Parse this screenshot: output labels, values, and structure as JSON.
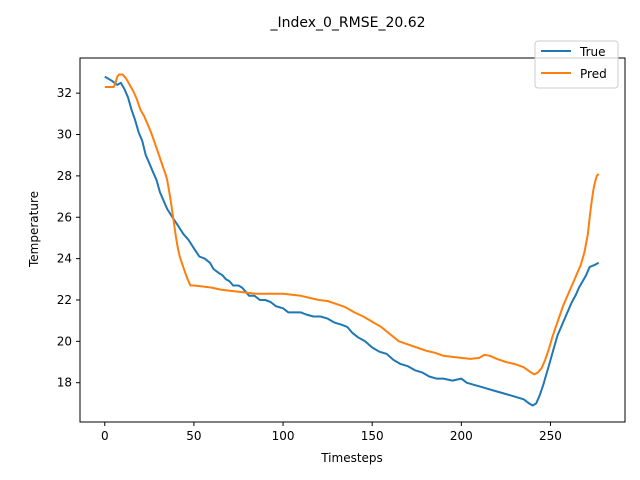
{
  "chart_data": {
    "type": "line",
    "title": "_Index_0_RMSE_20.62",
    "xlabel": "Timesteps",
    "ylabel": "Temperature",
    "xlim": [
      -13.9,
      291.8
    ],
    "ylim": [
      16.1,
      33.7
    ],
    "xticks": [
      0,
      50,
      100,
      150,
      200,
      250
    ],
    "yticks": [
      18,
      20,
      22,
      24,
      26,
      28,
      30,
      32
    ],
    "grid": false,
    "legend_position": "top-right",
    "series": [
      {
        "name": "True",
        "color": "#1f77b4",
        "points": [
          [
            0,
            32.8
          ],
          [
            4,
            32.6
          ],
          [
            7,
            32.4
          ],
          [
            9,
            32.5
          ],
          [
            11,
            32.2
          ],
          [
            13,
            31.8
          ],
          [
            15,
            31.2
          ],
          [
            17,
            30.7
          ],
          [
            19,
            30.1
          ],
          [
            21,
            29.7
          ],
          [
            23,
            29.0
          ],
          [
            25,
            28.6
          ],
          [
            27,
            28.2
          ],
          [
            29,
            27.8
          ],
          [
            31,
            27.2
          ],
          [
            33,
            26.8
          ],
          [
            35,
            26.4
          ],
          [
            38,
            26.0
          ],
          [
            41,
            25.6
          ],
          [
            44,
            25.2
          ],
          [
            47,
            24.9
          ],
          [
            50,
            24.5
          ],
          [
            53,
            24.1
          ],
          [
            56,
            24.0
          ],
          [
            59,
            23.8
          ],
          [
            61,
            23.5
          ],
          [
            64,
            23.3
          ],
          [
            66,
            23.2
          ],
          [
            68,
            23.0
          ],
          [
            70,
            22.9
          ],
          [
            72,
            22.7
          ],
          [
            75,
            22.7
          ],
          [
            77,
            22.6
          ],
          [
            79,
            22.4
          ],
          [
            81,
            22.2
          ],
          [
            84,
            22.2
          ],
          [
            87,
            22.0
          ],
          [
            90,
            22.0
          ],
          [
            93,
            21.9
          ],
          [
            96,
            21.7
          ],
          [
            100,
            21.6
          ],
          [
            103,
            21.4
          ],
          [
            107,
            21.4
          ],
          [
            110,
            21.4
          ],
          [
            113,
            21.3
          ],
          [
            117,
            21.2
          ],
          [
            121,
            21.2
          ],
          [
            125,
            21.1
          ],
          [
            129,
            20.9
          ],
          [
            133,
            20.8
          ],
          [
            136,
            20.7
          ],
          [
            139,
            20.4
          ],
          [
            142,
            20.2
          ],
          [
            146,
            20.0
          ],
          [
            150,
            19.7
          ],
          [
            154,
            19.5
          ],
          [
            158,
            19.4
          ],
          [
            162,
            19.1
          ],
          [
            166,
            18.9
          ],
          [
            170,
            18.8
          ],
          [
            174,
            18.6
          ],
          [
            178,
            18.5
          ],
          [
            182,
            18.3
          ],
          [
            186,
            18.2
          ],
          [
            190,
            18.2
          ],
          [
            195,
            18.1
          ],
          [
            200,
            18.2
          ],
          [
            203,
            18.0
          ],
          [
            207,
            17.9
          ],
          [
            211,
            17.8
          ],
          [
            215,
            17.7
          ],
          [
            219,
            17.6
          ],
          [
            223,
            17.5
          ],
          [
            227,
            17.4
          ],
          [
            231,
            17.3
          ],
          [
            235,
            17.2
          ],
          [
            238,
            17.0
          ],
          [
            240,
            16.9
          ],
          [
            242,
            17.0
          ],
          [
            244,
            17.4
          ],
          [
            246,
            17.9
          ],
          [
            248,
            18.5
          ],
          [
            250,
            19.1
          ],
          [
            252,
            19.7
          ],
          [
            254,
            20.3
          ],
          [
            256,
            20.7
          ],
          [
            258,
            21.1
          ],
          [
            260,
            21.5
          ],
          [
            262,
            21.9
          ],
          [
            264,
            22.2
          ],
          [
            266,
            22.6
          ],
          [
            268,
            22.9
          ],
          [
            270,
            23.2
          ],
          [
            272,
            23.6
          ],
          [
            275,
            23.7
          ],
          [
            277,
            23.8
          ]
        ]
      },
      {
        "name": "Pred",
        "color": "#ff7f0e",
        "points": [
          [
            0,
            32.3
          ],
          [
            3,
            32.3
          ],
          [
            5,
            32.3
          ],
          [
            6,
            32.5
          ],
          [
            7,
            32.8
          ],
          [
            8,
            32.9
          ],
          [
            10,
            32.9
          ],
          [
            12,
            32.7
          ],
          [
            14,
            32.4
          ],
          [
            16,
            32.1
          ],
          [
            18,
            31.7
          ],
          [
            20,
            31.2
          ],
          [
            22,
            30.9
          ],
          [
            24,
            30.5
          ],
          [
            26,
            30.1
          ],
          [
            28,
            29.6
          ],
          [
            30,
            29.1
          ],
          [
            32,
            28.6
          ],
          [
            34,
            28.1
          ],
          [
            35,
            27.8
          ],
          [
            36,
            27.3
          ],
          [
            37,
            26.8
          ],
          [
            38,
            26.2
          ],
          [
            39,
            25.6
          ],
          [
            40,
            25.0
          ],
          [
            41,
            24.5
          ],
          [
            42,
            24.1
          ],
          [
            44,
            23.6
          ],
          [
            46,
            23.1
          ],
          [
            48,
            22.7
          ],
          [
            50,
            22.7
          ],
          [
            55,
            22.65
          ],
          [
            60,
            22.6
          ],
          [
            65,
            22.5
          ],
          [
            70,
            22.45
          ],
          [
            75,
            22.4
          ],
          [
            80,
            22.35
          ],
          [
            85,
            22.3
          ],
          [
            90,
            22.3
          ],
          [
            95,
            22.3
          ],
          [
            100,
            22.3
          ],
          [
            105,
            22.25
          ],
          [
            110,
            22.2
          ],
          [
            115,
            22.1
          ],
          [
            120,
            22.0
          ],
          [
            125,
            21.95
          ],
          [
            130,
            21.8
          ],
          [
            135,
            21.65
          ],
          [
            140,
            21.4
          ],
          [
            145,
            21.2
          ],
          [
            150,
            20.95
          ],
          [
            155,
            20.7
          ],
          [
            160,
            20.35
          ],
          [
            165,
            20.0
          ],
          [
            170,
            19.85
          ],
          [
            175,
            19.7
          ],
          [
            180,
            19.55
          ],
          [
            185,
            19.45
          ],
          [
            190,
            19.3
          ],
          [
            195,
            19.25
          ],
          [
            200,
            19.2
          ],
          [
            205,
            19.15
          ],
          [
            210,
            19.2
          ],
          [
            213,
            19.35
          ],
          [
            216,
            19.3
          ],
          [
            220,
            19.15
          ],
          [
            225,
            19.0
          ],
          [
            230,
            18.9
          ],
          [
            235,
            18.75
          ],
          [
            239,
            18.5
          ],
          [
            241,
            18.4
          ],
          [
            243,
            18.5
          ],
          [
            245,
            18.7
          ],
          [
            247,
            19.1
          ],
          [
            249,
            19.6
          ],
          [
            251,
            20.2
          ],
          [
            253,
            20.7
          ],
          [
            255,
            21.2
          ],
          [
            257,
            21.7
          ],
          [
            259,
            22.1
          ],
          [
            261,
            22.5
          ],
          [
            263,
            22.9
          ],
          [
            265,
            23.3
          ],
          [
            267,
            23.7
          ],
          [
            269,
            24.3
          ],
          [
            271,
            25.2
          ],
          [
            272,
            26.0
          ],
          [
            273,
            26.7
          ],
          [
            274,
            27.3
          ],
          [
            275,
            27.7
          ],
          [
            276,
            28.0
          ],
          [
            277,
            28.1
          ]
        ]
      }
    ]
  }
}
